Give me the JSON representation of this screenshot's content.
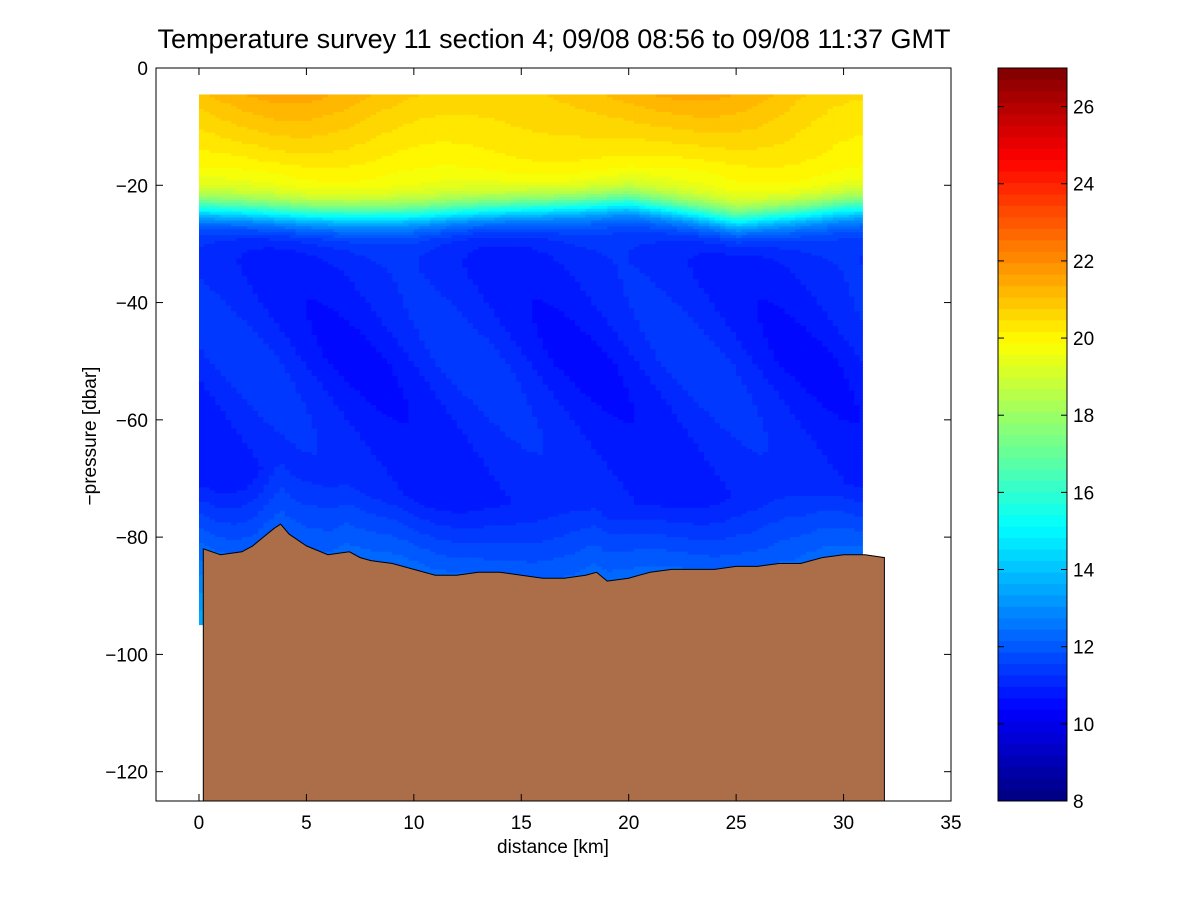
{
  "chart_data": {
    "type": "heatmap",
    "title": "Temperature survey 11 section 4; 09/08 08:56 to 09/08 11:37 GMT",
    "xlabel": "distance [km]",
    "ylabel": "−pressure [dbar]",
    "xlim": [
      -2,
      35
    ],
    "ylim": [
      -125,
      0
    ],
    "xticks": [
      0,
      5,
      10,
      15,
      20,
      25,
      30,
      35
    ],
    "xtick_labels": [
      "0",
      "5",
      "10",
      "15",
      "20",
      "25",
      "30",
      "35"
    ],
    "yticks": [
      0,
      -20,
      -40,
      -60,
      -80,
      -100,
      -120
    ],
    "ytick_labels": [
      "0",
      "−20",
      "−40",
      "−60",
      "−80",
      "−100",
      "−120"
    ],
    "colorbar": {
      "clim": [
        8,
        27
      ],
      "ticks": [
        8,
        10,
        12,
        14,
        16,
        18,
        20,
        22,
        24,
        26
      ],
      "tick_labels": [
        "8",
        "10",
        "12",
        "14",
        "16",
        "18",
        "20",
        "22",
        "24",
        "26"
      ],
      "colormap": "jet",
      "levels": 64
    },
    "data_region": {
      "x_range": [
        0,
        30.9
      ],
      "top_depth": -4.5,
      "near_surface_max_c": 21.5,
      "mixed_layer_c": 20,
      "deep_c": 11,
      "thermocline_depth_by_x": [
        {
          "x": 0,
          "depth": -24
        },
        {
          "x": 5,
          "depth": -25
        },
        {
          "x": 10,
          "depth": -25
        },
        {
          "x": 15,
          "depth": -24
        },
        {
          "x": 20,
          "depth": -23
        },
        {
          "x": 25,
          "depth": -26
        },
        {
          "x": 30,
          "depth": -24
        }
      ]
    },
    "bathymetry": {
      "color": "#ac6e48",
      "x": [
        0.2,
        0.6,
        1,
        2,
        2.5,
        3,
        3.5,
        3.8,
        4.2,
        5,
        6,
        7,
        7.5,
        8,
        9,
        10,
        11,
        12,
        13,
        14,
        15,
        16,
        17,
        18,
        18.5,
        19,
        20,
        20.5,
        21,
        22,
        23,
        24,
        25,
        26,
        27,
        28,
        29,
        30,
        30.5,
        31,
        31.9
      ],
      "y": [
        -82,
        -82.5,
        -83,
        -82.5,
        -81.5,
        -80,
        -78.5,
        -77.8,
        -79.5,
        -81.5,
        -83,
        -82.5,
        -83.5,
        -84,
        -84.5,
        -85.5,
        -86.5,
        -86.5,
        -86,
        -86,
        -86.5,
        -87,
        -87,
        -86.5,
        -86,
        -87.5,
        -87,
        -86.5,
        -86,
        -85.5,
        -85.5,
        -85.5,
        -85,
        -85,
        -84.5,
        -84.5,
        -83.5,
        -83,
        -83,
        -83,
        -83.5
      ]
    }
  }
}
